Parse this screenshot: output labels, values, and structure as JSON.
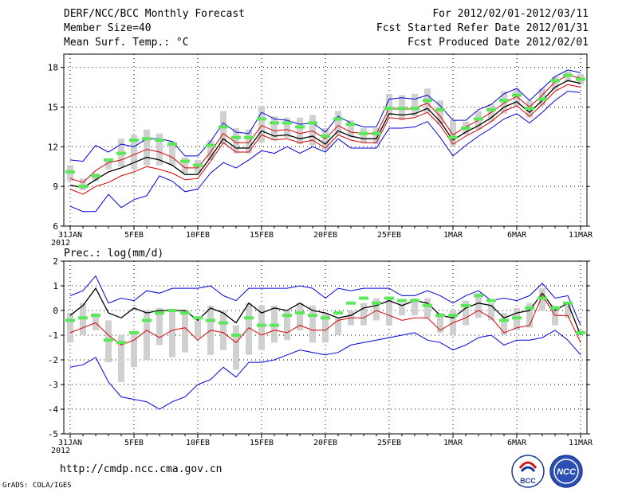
{
  "header": {
    "title": "DERF/NCC/BCC Monthly Forecast",
    "member": "Member Size=40",
    "variable": "Mean Surf. Temp.: °C",
    "period": "For 2012/02/01-2012/03/11",
    "started": "Fcst Started Refer Date 2012/01/31",
    "produced": "Fcst Produced Date 2012/02/01"
  },
  "footer": {
    "url": "http://cmdp.ncc.cma.gov.cn",
    "grads": "GrADS: COLA/IGES",
    "logo_left_text": "BCC",
    "logo_right_text": "NCC"
  },
  "colors": {
    "box": "#d0d0d0",
    "marker": "#5ae85a",
    "envelope": "#0000dd",
    "mean": "#000000",
    "spread": "#d40000",
    "grid": "#000000"
  },
  "chart_data": [
    {
      "type": "line",
      "title": "Mean Surf. Temp.: °C",
      "ylim": [
        6,
        19
      ],
      "yticks": [
        6,
        9,
        12,
        15,
        18
      ],
      "x_tick_labels": [
        "31JAN",
        "5FEB",
        "10FEB",
        "15FEB",
        "20FEB",
        "25FEB",
        "1MAR",
        "6MAR",
        "11MAR"
      ],
      "x_tick_index": [
        0,
        5,
        10,
        15,
        20,
        25,
        30,
        35,
        40
      ],
      "x_sublabel": "2012",
      "n_days": 41,
      "series": [
        {
          "name": "upper-envelope",
          "role": "envelope",
          "values": [
            11.0,
            10.9,
            12.1,
            11.6,
            12.2,
            12.0,
            12.6,
            12.6,
            12.4,
            11.3,
            11.3,
            12.4,
            13.8,
            13.1,
            13.0,
            14.6,
            14.1,
            14.0,
            13.7,
            13.8,
            13.1,
            14.3,
            13.8,
            13.5,
            13.5,
            15.6,
            15.7,
            15.6,
            15.9,
            15.1,
            14.0,
            14.0,
            14.8,
            15.2,
            16.0,
            16.4,
            15.5,
            16.4,
            17.3,
            17.8,
            17.6
          ]
        },
        {
          "name": "upper-spread",
          "role": "spread",
          "values": [
            9.6,
            9.3,
            10.2,
            10.8,
            11.0,
            11.4,
            11.8,
            11.6,
            11.2,
            10.4,
            10.4,
            11.6,
            13.0,
            12.3,
            12.3,
            13.6,
            13.2,
            13.3,
            13.0,
            13.2,
            12.6,
            13.6,
            13.1,
            13.0,
            13.0,
            14.9,
            14.8,
            14.9,
            15.3,
            14.3,
            12.9,
            13.5,
            14.0,
            14.6,
            15.3,
            15.8,
            15.0,
            15.9,
            16.9,
            17.4,
            17.2
          ]
        },
        {
          "name": "ensemble-mean",
          "role": "mean",
          "values": [
            9.1,
            8.9,
            9.5,
            10.1,
            10.4,
            10.8,
            11.2,
            11.0,
            10.6,
            9.9,
            9.9,
            11.2,
            12.6,
            11.9,
            11.9,
            13.2,
            12.8,
            12.9,
            12.6,
            12.8,
            12.2,
            13.2,
            12.8,
            12.6,
            12.6,
            14.5,
            14.4,
            14.5,
            14.9,
            13.9,
            12.5,
            13.1,
            13.6,
            14.2,
            15.0,
            15.4,
            14.6,
            15.5,
            16.5,
            17.0,
            16.8
          ]
        },
        {
          "name": "lower-spread",
          "role": "spread",
          "values": [
            8.8,
            8.4,
            9.0,
            9.3,
            9.8,
            10.1,
            10.5,
            10.3,
            10.0,
            9.5,
            9.6,
            10.9,
            12.3,
            11.6,
            11.6,
            12.9,
            12.5,
            12.6,
            12.3,
            12.5,
            11.9,
            12.9,
            12.5,
            12.3,
            12.3,
            14.2,
            14.1,
            14.2,
            14.6,
            13.6,
            12.2,
            12.8,
            13.3,
            13.9,
            14.7,
            15.1,
            14.3,
            15.2,
            16.2,
            16.7,
            16.5
          ]
        },
        {
          "name": "lower-envelope",
          "role": "envelope",
          "values": [
            7.5,
            7.1,
            7.1,
            8.4,
            7.4,
            8.0,
            8.3,
            9.8,
            9.4,
            8.6,
            8.8,
            10.0,
            10.8,
            10.4,
            11.0,
            11.7,
            11.5,
            12.0,
            11.5,
            12.0,
            11.6,
            12.6,
            11.9,
            11.9,
            11.9,
            13.4,
            13.4,
            13.5,
            13.9,
            12.7,
            11.3,
            12.1,
            12.8,
            13.4,
            14.1,
            14.5,
            13.8,
            14.6,
            15.5,
            16.2,
            16.1
          ]
        }
      ],
      "boxes": [
        [
          10.6,
          9.4
        ],
        [
          9.6,
          8.7
        ],
        [
          10.0,
          9.4
        ],
        [
          11.1,
          10.3
        ],
        [
          12.6,
          10.5
        ],
        [
          12.9,
          10.3
        ],
        [
          13.3,
          10.6
        ],
        [
          13.0,
          10.6
        ],
        [
          12.4,
          10.6
        ],
        [
          11.2,
          10.0
        ],
        [
          11.0,
          10.0
        ],
        [
          12.5,
          11.0
        ],
        [
          14.7,
          12.2
        ],
        [
          13.4,
          11.5
        ],
        [
          13.3,
          11.5
        ],
        [
          15.1,
          12.3
        ],
        [
          14.3,
          12.5
        ],
        [
          14.2,
          12.7
        ],
        [
          14.2,
          12.2
        ],
        [
          14.4,
          12.1
        ],
        [
          13.4,
          11.8
        ],
        [
          14.7,
          12.9
        ],
        [
          14.0,
          12.7
        ],
        [
          13.4,
          12.3
        ],
        [
          13.4,
          12.2
        ],
        [
          16.0,
          14.3
        ],
        [
          15.9,
          14.0
        ],
        [
          16.0,
          14.3
        ],
        [
          16.4,
          14.6
        ],
        [
          15.5,
          13.7
        ],
        [
          14.0,
          12.1
        ],
        [
          13.9,
          12.9
        ],
        [
          14.7,
          13.3
        ],
        [
          15.2,
          13.9
        ],
        [
          16.2,
          14.5
        ],
        [
          16.4,
          15.1
        ],
        [
          15.5,
          14.2
        ],
        [
          16.4,
          15.1
        ],
        [
          17.3,
          16.3
        ],
        [
          17.7,
          16.9
        ],
        [
          17.5,
          16.7
        ]
      ],
      "markers": [
        10.1,
        9.0,
        9.8,
        11.0,
        11.5,
        12.5,
        12.6,
        12.5,
        12.2,
        10.9,
        10.6,
        12.1,
        13.5,
        12.7,
        12.7,
        14.1,
        13.8,
        13.8,
        13.5,
        13.8,
        12.8,
        14.1,
        13.7,
        13.0,
        13.0,
        14.9,
        14.9,
        14.9,
        15.5,
        14.8,
        12.7,
        13.4,
        14.1,
        14.8,
        15.5,
        15.9,
        14.9,
        15.6,
        17.0,
        17.4,
        17.1
      ]
    },
    {
      "type": "line",
      "title": "Prec.: log(mm/d)",
      "ylim": [
        -5,
        2
      ],
      "yticks": [
        -5,
        -4,
        -3,
        -2,
        -1,
        0,
        1,
        2
      ],
      "x_tick_labels": [
        "31JAN",
        "5FEB",
        "10FEB",
        "15FEB",
        "20FEB",
        "25FEB",
        "1MAR",
        "6MAR",
        "11MAR"
      ],
      "x_tick_index": [
        0,
        5,
        10,
        15,
        20,
        25,
        30,
        35,
        40
      ],
      "x_sublabel": "2012",
      "n_days": 41,
      "series": [
        {
          "name": "upper-envelope",
          "role": "envelope",
          "values": [
            0.6,
            0.8,
            1.4,
            0.3,
            0.5,
            0.4,
            0.8,
            0.7,
            0.9,
            0.9,
            0.9,
            1.0,
            0.6,
            0.4,
            0.9,
            0.9,
            0.9,
            0.9,
            1.0,
            0.9,
            0.5,
            0.9,
            0.8,
            0.9,
            0.9,
            0.9,
            0.6,
            0.6,
            0.8,
            0.6,
            0.3,
            0.6,
            0.8,
            0.4,
            0.5,
            0.4,
            0.6,
            1.1,
            0.5,
            0.6,
            -0.6
          ]
        },
        {
          "name": "ensemble-mean",
          "role": "mean",
          "values": [
            -0.2,
            0.2,
            0.9,
            -0.1,
            -0.3,
            0.1,
            -0.1,
            0.0,
            0.0,
            0.0,
            -0.4,
            0.1,
            -0.1,
            -0.5,
            0.3,
            -0.1,
            0.1,
            0.0,
            0.3,
            0.0,
            -0.1,
            -0.3,
            -0.2,
            0.1,
            0.2,
            0.4,
            0.2,
            0.4,
            0.3,
            -0.2,
            -0.3,
            0.1,
            0.3,
            0.2,
            -0.3,
            -0.1,
            0.0,
            0.7,
            0.0,
            0.3,
            -1.0
          ]
        },
        {
          "name": "red-inner",
          "role": "spread",
          "values": [
            -0.9,
            -0.7,
            -0.5,
            -1.0,
            -1.4,
            -1.2,
            -0.8,
            -1.1,
            -0.8,
            -0.7,
            -1.2,
            -0.8,
            -0.9,
            -1.3,
            -0.7,
            -1.0,
            -0.8,
            -0.9,
            -0.6,
            -0.8,
            -0.8,
            -0.4,
            -0.3,
            -0.3,
            0.0,
            -0.2,
            -0.4,
            -0.3,
            -0.3,
            -0.8,
            -0.5,
            -0.3,
            0.0,
            -0.3,
            -0.9,
            -0.7,
            -0.6,
            0.6,
            -0.2,
            -0.2,
            -1.3
          ]
        },
        {
          "name": "lower-envelope",
          "role": "envelope",
          "values": [
            -2.3,
            -2.2,
            -1.9,
            -2.9,
            -3.5,
            -3.6,
            -3.7,
            -4.0,
            -3.7,
            -3.5,
            -3.0,
            -2.8,
            -2.3,
            -2.7,
            -2.1,
            -2.1,
            -2.0,
            -1.8,
            -1.6,
            -1.7,
            -1.8,
            -1.7,
            -1.4,
            -1.3,
            -1.2,
            -1.1,
            -1.0,
            -0.9,
            -1.2,
            -1.3,
            -1.6,
            -1.4,
            -1.1,
            -1.0,
            -1.4,
            -1.2,
            -1.2,
            -1.1,
            -0.8,
            -1.2,
            -1.8
          ]
        }
      ],
      "boxes": [
        [
          -0.1,
          -1.3
        ],
        [
          0.3,
          -1.0
        ],
        [
          -0.1,
          -0.8
        ],
        [
          -0.4,
          -2.1
        ],
        [
          -1.0,
          -2.9
        ],
        [
          -0.9,
          -2.3
        ],
        [
          0.0,
          -2.0
        ],
        [
          0.1,
          -1.4
        ],
        [
          0.0,
          -1.9
        ],
        [
          0.0,
          -1.7
        ],
        [
          -0.4,
          -1.1
        ],
        [
          0.2,
          -1.8
        ],
        [
          0.0,
          -1.6
        ],
        [
          -0.6,
          -2.4
        ],
        [
          0.3,
          -1.8
        ],
        [
          0.2,
          -1.6
        ],
        [
          0.2,
          -1.3
        ],
        [
          0.0,
          -1.2
        ],
        [
          0.3,
          -0.8
        ],
        [
          0.2,
          -1.3
        ],
        [
          -0.1,
          -1.3
        ],
        [
          -0.3,
          -1.0
        ],
        [
          0.0,
          -0.6
        ],
        [
          0.3,
          -0.6
        ],
        [
          0.5,
          -0.4
        ],
        [
          0.5,
          -0.6
        ],
        [
          0.3,
          -0.2
        ],
        [
          0.5,
          -0.2
        ],
        [
          0.5,
          -0.3
        ],
        [
          -0.1,
          -0.9
        ],
        [
          0.0,
          -1.0
        ],
        [
          0.4,
          -0.6
        ],
        [
          0.7,
          -0.3
        ],
        [
          0.3,
          -0.4
        ],
        [
          -0.1,
          -1.0
        ],
        [
          0.1,
          -0.8
        ],
        [
          0.3,
          -0.7
        ],
        [
          0.9,
          0.0
        ],
        [
          0.2,
          -0.6
        ],
        [
          0.3,
          -0.3
        ],
        [
          -0.8,
          -1.0
        ]
      ],
      "markers": [
        -0.4,
        -0.3,
        -0.2,
        -1.2,
        -1.3,
        -0.9,
        -0.4,
        -0.1,
        0.0,
        -0.1,
        -0.3,
        -0.4,
        -0.5,
        -1.0,
        -0.3,
        -0.6,
        -0.6,
        -0.2,
        -0.1,
        -0.2,
        -0.3,
        -0.1,
        0.3,
        0.5,
        0.3,
        0.5,
        0.4,
        0.4,
        0.2,
        -0.2,
        -0.2,
        0.2,
        0.6,
        0.4,
        -0.4,
        -0.3,
        0.1,
        0.5,
        0.1,
        0.3,
        -0.9
      ]
    }
  ]
}
